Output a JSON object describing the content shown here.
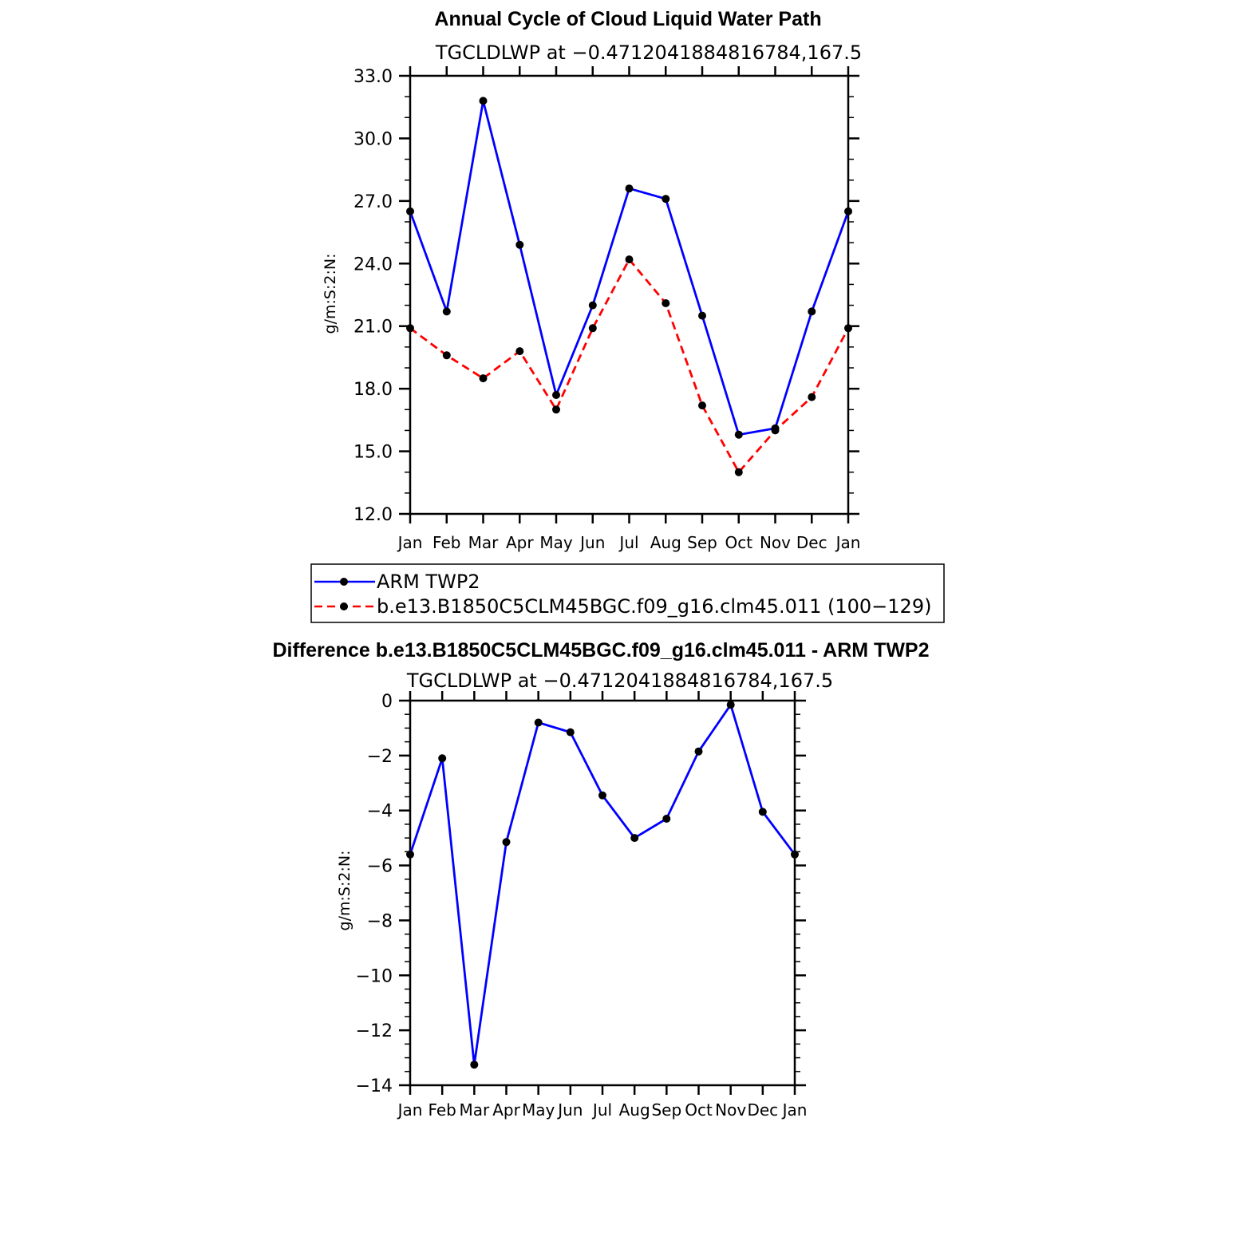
{
  "chart_data": [
    {
      "type": "line",
      "title": "Annual Cycle of Cloud Liquid Water Path",
      "subtitle": "TGCLDLWP at −0.4712041884816784,167.5",
      "ylabel": "g/m:S:2:N:",
      "categories": [
        "Jan",
        "Feb",
        "Mar",
        "Apr",
        "May",
        "Jun",
        "Jul",
        "Aug",
        "Sep",
        "Oct",
        "Nov",
        "Dec",
        "Jan"
      ],
      "ylim": [
        12,
        33
      ],
      "yticks": [
        "12.0",
        "15.0",
        "18.0",
        "21.0",
        "24.0",
        "27.0",
        "30.0",
        "33.0"
      ],
      "series": [
        {
          "name": "ARM TWP2",
          "color": "#0000ff",
          "dash": "solid",
          "values": [
            26.5,
            21.7,
            31.8,
            24.9,
            17.7,
            22.0,
            27.6,
            27.1,
            21.5,
            15.8,
            16.1,
            21.7,
            26.5
          ]
        },
        {
          "name": "b.e13.B1850C5CLM45BGC.f09_g16.clm45.011 (100−129)",
          "color": "#ff0000",
          "dash": "dashed",
          "values": [
            20.9,
            19.6,
            18.5,
            19.8,
            17.0,
            20.9,
            24.2,
            22.1,
            17.2,
            14.0,
            16.0,
            17.6,
            20.9
          ]
        }
      ],
      "legend_position": "below"
    },
    {
      "type": "line",
      "title": "Difference b.e13.B1850C5CLM45BGC.f09_g16.clm45.011 - ARM TWP2",
      "subtitle": "TGCLDLWP at −0.4712041884816784,167.5",
      "ylabel": "g/m:S:2:N:",
      "categories": [
        "Jan",
        "Feb",
        "Mar",
        "Apr",
        "May",
        "Jun",
        "Jul",
        "Aug",
        "Sep",
        "Oct",
        "Nov",
        "Dec",
        "Jan"
      ],
      "ylim": [
        -14,
        0
      ],
      "yticks": [
        "−14",
        "−12",
        "−10",
        "−8",
        "−6",
        "−4",
        "−2",
        "0"
      ],
      "series": [
        {
          "color": "#0000ff",
          "dash": "solid",
          "values": [
            -5.6,
            -2.1,
            -13.25,
            -5.15,
            -0.8,
            -1.15,
            -3.45,
            -5.0,
            -4.3,
            -1.85,
            -0.15,
            -4.05,
            -5.6
          ]
        }
      ]
    }
  ]
}
